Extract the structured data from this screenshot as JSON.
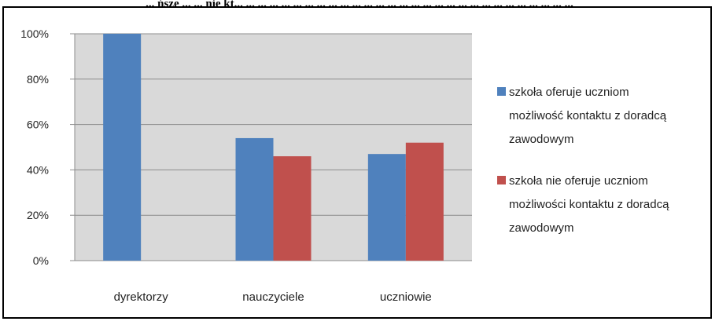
{
  "caption": "... ńsze ... ... nie kt... ... ... ... ... ... ... ... ... ... ... ... ... ... ... ... ... ... ... ... ... ... ... ... ... ... ... ... ...",
  "chart_data": {
    "type": "bar",
    "categories": [
      "dyrektorzy",
      "nauczyciele",
      "uczniowie"
    ],
    "series": [
      {
        "name": "szkoła oferuje uczniom możliwość kontaktu z doradcą zawodowym",
        "name_lines": [
          "szkoła oferuje uczniom",
          "możliwość kontaktu z doradcą",
          "zawodowym"
        ],
        "color": "#4f81bd",
        "values": [
          100,
          54,
          47
        ]
      },
      {
        "name": "szkoła nie oferuje uczniom możliwości kontaktu z doradcą zawodowym",
        "name_lines": [
          "szkoła nie oferuje uczniom",
          "możliwości kontaktu z doradcą",
          "zawodowym"
        ],
        "color": "#c0504d",
        "values": [
          null,
          46,
          52
        ]
      }
    ],
    "yticks": [
      "0%",
      "20%",
      "40%",
      "60%",
      "80%",
      "100%"
    ],
    "ylim": [
      0,
      100
    ],
    "grid": true,
    "plot_bg": "#d9d9d9",
    "legend_position": "right"
  }
}
